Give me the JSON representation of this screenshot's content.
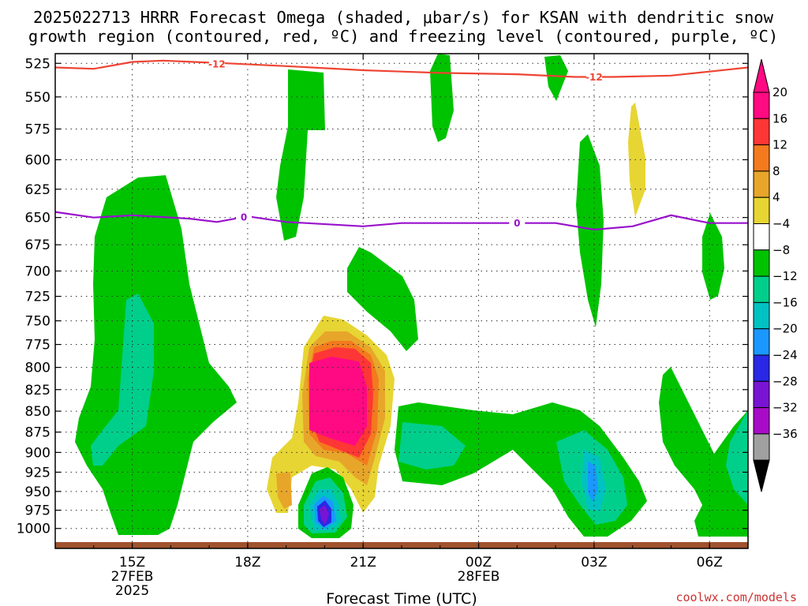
{
  "title_line1": "2025022713 HRRR Forecast Omega (shaded, μbar/s) for KSAN with dendritic snow",
  "title_line2": "growth region (contoured, red, ºC) and freezing level (contoured, purple, ºC)",
  "credit": "coolwx.com/models",
  "chart_data": {
    "type": "contour",
    "title": "2025022713 HRRR Forecast Omega (shaded, μbar/s) for KSAN with dendritic snow growth region (contoured, red, ºC) and freezing level (contoured, purple, ºC)",
    "xlabel": "Forecast Time (UTC)",
    "ylabel": "",
    "x_ticks": [
      {
        "hour": 15,
        "lines": [
          "15Z",
          "27FEB",
          "2025"
        ]
      },
      {
        "hour": 18,
        "lines": [
          "18Z"
        ]
      },
      {
        "hour": 21,
        "lines": [
          "21Z"
        ]
      },
      {
        "hour": 24,
        "lines": [
          "00Z",
          "28FEB"
        ]
      },
      {
        "hour": 27,
        "lines": [
          "03Z"
        ]
      },
      {
        "hour": 30,
        "lines": [
          "06Z"
        ]
      }
    ],
    "xlim": [
      13,
      31
    ],
    "y_ticks": [
      525,
      550,
      575,
      600,
      625,
      650,
      675,
      700,
      725,
      750,
      775,
      800,
      825,
      850,
      875,
      900,
      925,
      950,
      975,
      1000
    ],
    "ylim": [
      518,
      1028
    ],
    "y_scale": "log (pressure)",
    "grid": "dotted",
    "colorbar": {
      "labels": [
        "20",
        "16",
        "12",
        "8",
        "4",
        "−4",
        "−8",
        "−12",
        "−16",
        "−20",
        "−24",
        "−28",
        "−32",
        "−36"
      ],
      "colors": [
        "#ff0a82",
        "#ff3636",
        "#f47a1e",
        "#e7a62a",
        "#e7d533",
        "#ffffff",
        "#00c300",
        "#00cf8c",
        "#00c2c2",
        "#1a98ff",
        "#2828e6",
        "#7a14d4",
        "#a80bc7",
        "#a0a0a0"
      ],
      "top_color": "#ff0a82",
      "bottom_color": "#000000"
    },
    "contours": [
      {
        "name": "dendritic growth region",
        "color": "#ee4433",
        "label": "-12",
        "points": [
          [
            13,
            528
          ],
          [
            14,
            529
          ],
          [
            15,
            524
          ],
          [
            15.8,
            523
          ],
          [
            16.6,
            524
          ],
          [
            17.5,
            525
          ],
          [
            19,
            527
          ],
          [
            21,
            530
          ],
          [
            23,
            532
          ],
          [
            25,
            533
          ],
          [
            26.5,
            535
          ],
          [
            27.5,
            535
          ],
          [
            29,
            534
          ],
          [
            30,
            531
          ],
          [
            31,
            528
          ]
        ]
      },
      {
        "name": "freezing level",
        "color": "#9911cc",
        "label": "0",
        "points": [
          [
            13,
            645
          ],
          [
            14,
            650
          ],
          [
            15,
            648
          ],
          [
            16.5,
            651
          ],
          [
            17.2,
            654
          ],
          [
            18,
            649
          ],
          [
            19,
            654
          ],
          [
            21,
            658
          ],
          [
            22,
            655
          ],
          [
            23,
            655
          ],
          [
            24.5,
            655
          ],
          [
            26,
            655
          ],
          [
            27,
            661
          ],
          [
            28,
            658
          ],
          [
            29,
            648
          ],
          [
            30,
            655
          ],
          [
            31,
            655
          ]
        ]
      }
    ],
    "ground": {
      "color": "#a0522d"
    }
  }
}
